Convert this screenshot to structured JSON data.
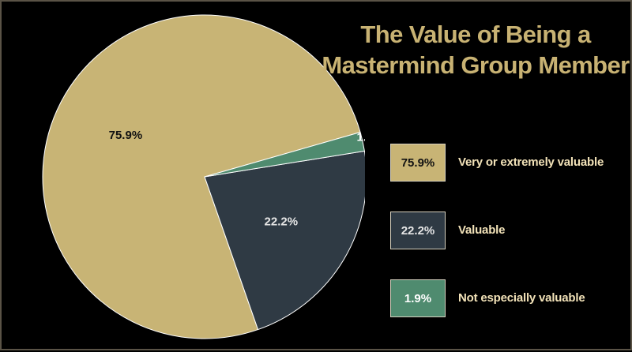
{
  "chart_data": {
    "type": "pie",
    "title": [
      "The Value of Being a",
      "Mastermind Group Member"
    ],
    "slices": [
      {
        "label": "Very or extremely valuable",
        "value": 75.9,
        "display": "75.9%",
        "color": "#c8b475",
        "text_color": "#111111"
      },
      {
        "label": "Valuable",
        "value": 22.2,
        "display": "22.2%",
        "color": "#2f3a44",
        "text_color": "#e6e6e6"
      },
      {
        "label": "Not especially valuable",
        "value": 1.9,
        "display": "1.9%",
        "color": "#4f8b6f",
        "text_color": "#ffffff"
      }
    ],
    "start_angle_deg": 16,
    "direction": "counterclockwise",
    "legend_position": "right"
  }
}
